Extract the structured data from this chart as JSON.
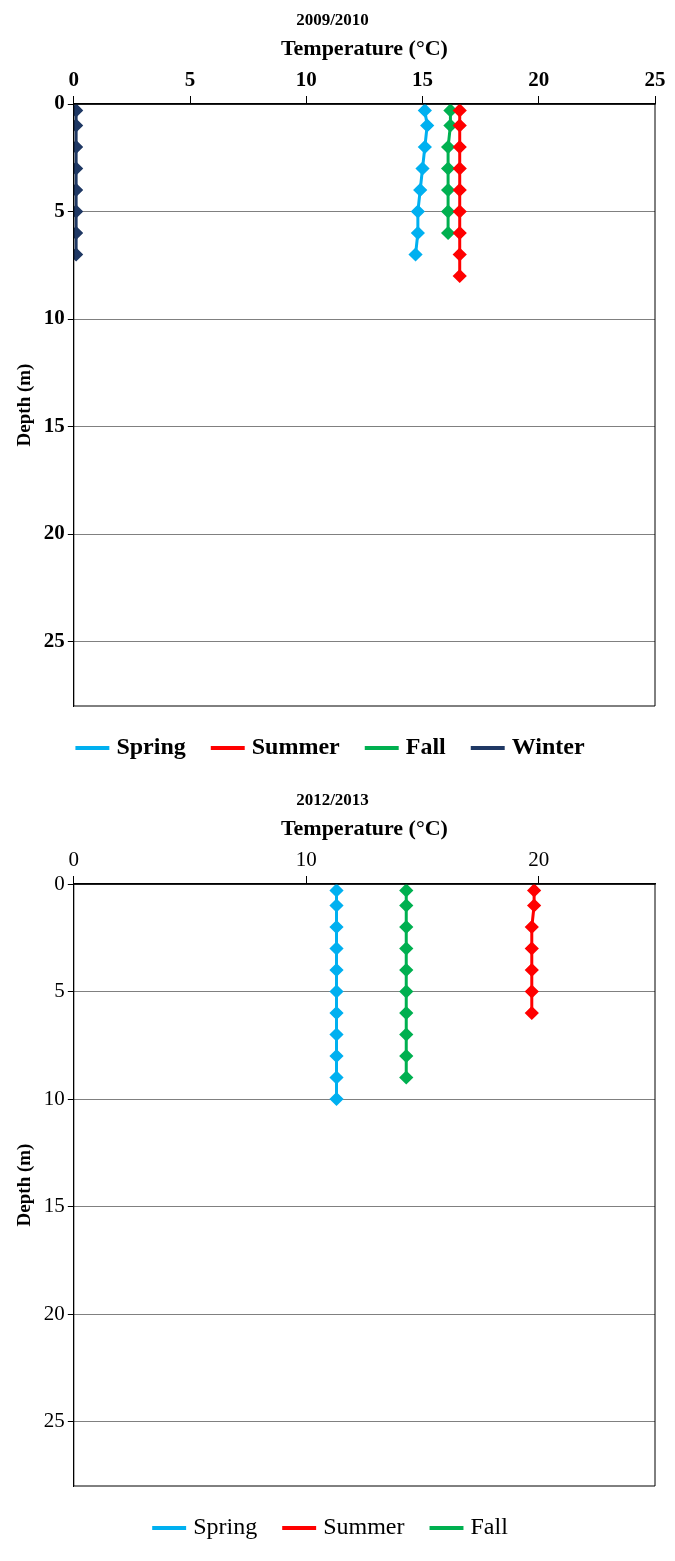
{
  "chart_data": [
    {
      "type": "line",
      "title": "2009/2010",
      "xlabel": "Temperature (°C)",
      "ylabel": "Depth (m)",
      "xlim": [
        0,
        25
      ],
      "xticks": [
        0,
        5,
        10,
        15,
        20,
        25
      ],
      "ylim": [
        28,
        0
      ],
      "yticks": [
        0,
        5,
        10,
        15,
        20,
        25
      ],
      "grid": "y",
      "legend": "bottom",
      "marker": "diamond",
      "series": [
        {
          "name": "Spring",
          "color": "#00b0f0",
          "x": [
            15.1,
            15.2,
            15.1,
            15.0,
            14.9,
            14.8,
            14.8,
            14.7
          ],
          "values": [
            0.3,
            1,
            2,
            3,
            4,
            5,
            6,
            7
          ]
        },
        {
          "name": "Summer",
          "color": "#ff0000",
          "x": [
            16.6,
            16.6,
            16.6,
            16.6,
            16.6,
            16.6,
            16.6,
            16.6,
            16.6
          ],
          "values": [
            0.3,
            1,
            2,
            3,
            4,
            5,
            6,
            7,
            8
          ]
        },
        {
          "name": "Fall",
          "color": "#00b050",
          "x": [
            16.2,
            16.2,
            16.1,
            16.1,
            16.1,
            16.1,
            16.1
          ],
          "values": [
            0.3,
            1,
            2,
            3,
            4,
            5,
            6
          ]
        },
        {
          "name": "Winter",
          "color": "#1f3864",
          "x": [
            0.1,
            0.1,
            0.1,
            0.1,
            0.1,
            0.1,
            0.1,
            0.1
          ],
          "values": [
            0.3,
            1,
            2,
            3,
            4,
            5,
            6,
            7
          ]
        }
      ]
    },
    {
      "type": "line",
      "title": "2012/2013",
      "xlabel": "Temperature (°C)",
      "ylabel": "Depth (m)",
      "xlim": [
        0,
        25
      ],
      "xticks": [
        0,
        10,
        20
      ],
      "ylim": [
        28,
        0
      ],
      "yticks": [
        0,
        5,
        10,
        15,
        20,
        25
      ],
      "grid": "y",
      "legend": "bottom",
      "marker": "diamond",
      "series": [
        {
          "name": "Spring",
          "color": "#00b0f0",
          "x": [
            11.3,
            11.3,
            11.3,
            11.3,
            11.3,
            11.3,
            11.3,
            11.3,
            11.3,
            11.3,
            11.3
          ],
          "values": [
            0.3,
            1,
            2,
            3,
            4,
            5,
            6,
            7,
            8,
            9,
            10
          ]
        },
        {
          "name": "Summer",
          "color": "#ff0000",
          "x": [
            19.8,
            19.8,
            19.7,
            19.7,
            19.7,
            19.7,
            19.7
          ],
          "values": [
            0.3,
            1,
            2,
            3,
            4,
            5,
            6
          ]
        },
        {
          "name": "Fall",
          "color": "#00b050",
          "x": [
            14.3,
            14.3,
            14.3,
            14.3,
            14.3,
            14.3,
            14.3,
            14.3,
            14.3,
            14.3
          ],
          "values": [
            0.3,
            1,
            2,
            3,
            4,
            5,
            6,
            7,
            8,
            9
          ]
        }
      ]
    }
  ]
}
